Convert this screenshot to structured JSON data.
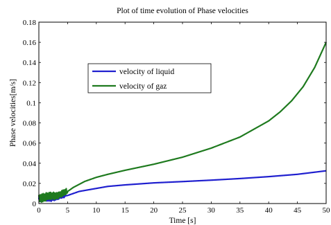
{
  "chart_data": {
    "type": "line",
    "title": "Plot of time evolution of Phase velocities",
    "xlabel": "Time [s]",
    "ylabel": "Phase velocities[m/s]",
    "xlim": [
      0,
      50
    ],
    "ylim": [
      0,
      0.18
    ],
    "xticks": [
      "0",
      "5",
      "10",
      "15",
      "20",
      "25",
      "30",
      "35",
      "40",
      "45",
      "50"
    ],
    "yticks": [
      "0",
      "0.02",
      "0.04",
      "0.06",
      "0.08",
      "0.1",
      "0.12",
      "0.14",
      "0.16",
      "0.18"
    ],
    "grid": false,
    "legend_position": "upper-left inside axes",
    "series": [
      {
        "name": "velocity of liquid",
        "color": "#1f1fcf",
        "x": [
          0,
          1,
          2,
          3,
          4,
          5,
          6,
          7,
          8,
          10,
          12,
          15,
          20,
          25,
          30,
          35,
          40,
          45,
          50
        ],
        "y": [
          0.004,
          0.005,
          0.005,
          0.006,
          0.007,
          0.008,
          0.01,
          0.012,
          0.013,
          0.015,
          0.017,
          0.0185,
          0.0205,
          0.0218,
          0.0232,
          0.0248,
          0.0267,
          0.029,
          0.0325
        ],
        "noisy_until": 4.5
      },
      {
        "name": "velocity of gaz",
        "color": "#1e7a1e",
        "x": [
          0,
          1,
          2,
          3,
          4,
          5,
          6,
          7,
          8,
          10,
          12,
          15,
          20,
          25,
          30,
          35,
          40,
          42,
          44,
          46,
          48,
          50
        ],
        "y": [
          0.006,
          0.006,
          0.007,
          0.008,
          0.01,
          0.012,
          0.016,
          0.019,
          0.022,
          0.026,
          0.029,
          0.033,
          0.039,
          0.046,
          0.055,
          0.066,
          0.082,
          0.091,
          0.102,
          0.116,
          0.135,
          0.16
        ],
        "noisy_until": 5
      }
    ]
  }
}
